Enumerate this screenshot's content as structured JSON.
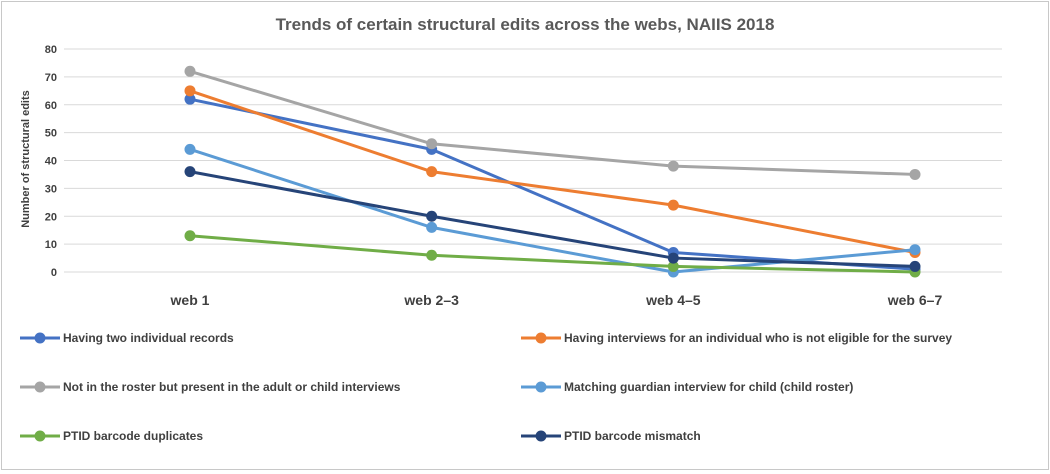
{
  "chart_data": {
    "type": "line",
    "title": "Trends of certain structural edits across the webs, NAIIS 2018",
    "xlabel": "",
    "ylabel": "Number of structural edits",
    "ylim": [
      0,
      80
    ],
    "yticks": [
      0,
      10,
      20,
      30,
      40,
      50,
      60,
      70,
      80
    ],
    "grid": true,
    "legend_position": "bottom",
    "categories": [
      "web 1",
      "web 2–3",
      "web 4–5",
      "web 6–7"
    ],
    "series": [
      {
        "name": "Having two individual records",
        "color": "#4472c4",
        "values": [
          62,
          44,
          7,
          1
        ]
      },
      {
        "name": "Having interviews for an individual who is not eligible for the survey",
        "color": "#ed7d31",
        "values": [
          65,
          36,
          24,
          7
        ]
      },
      {
        "name": "Not in the roster but present in the adult or child interviews",
        "color": "#a5a5a5",
        "values": [
          72,
          46,
          38,
          35
        ]
      },
      {
        "name": "Matching guardian interview for child (child roster)",
        "color": "#5b9bd5",
        "values": [
          44,
          16,
          0,
          8
        ]
      },
      {
        "name": "PTID barcode duplicates",
        "color": "#70ad47",
        "values": [
          13,
          6,
          2,
          0
        ]
      },
      {
        "name": "PTID barcode mismatch",
        "color": "#264478",
        "values": [
          36,
          20,
          5,
          2
        ]
      }
    ]
  }
}
